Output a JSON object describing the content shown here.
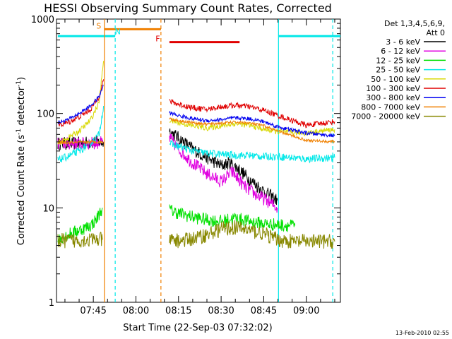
{
  "chart_data": {
    "type": "line",
    "title": "HESSI Observing Summary Count Rates, Corrected",
    "xlabel": "Start Time (22-Sep-03 07:32:02)",
    "ylabel_main": "Corrected Count Rate (s",
    "ylabel_sup1": "-1",
    "ylabel_mid": " detector",
    "ylabel_sup2": "-1",
    "ylabel_end": ")",
    "ylabel": "Corrected Count Rate (s-1 detector-1)",
    "yscale": "log",
    "ylim": [
      1,
      1000
    ],
    "xlim": [
      452.03,
      552
    ],
    "grid": false,
    "x_units": "minutes of day",
    "x_ticks": [
      {
        "value": 465,
        "label": "07:45"
      },
      {
        "value": 480,
        "label": "08:00"
      },
      {
        "value": 495,
        "label": "08:15"
      },
      {
        "value": 510,
        "label": "08:30"
      },
      {
        "value": 525,
        "label": "08:45"
      },
      {
        "value": 540,
        "label": "09:00"
      }
    ],
    "y_ticks": [
      {
        "value": 1,
        "label": "1"
      },
      {
        "value": 10,
        "label": "10"
      },
      {
        "value": 100,
        "label": "100"
      },
      {
        "value": 1000,
        "label": "1000"
      }
    ],
    "legend": {
      "placement": "right",
      "title_line1": "Det 1,3,4,5,6,9,",
      "title_line2": "Att 0"
    },
    "series": [
      {
        "name": "3 - 6 keV",
        "color": "#000000",
        "noise": 0.07,
        "segments": [
          {
            "x": [
              452.5,
              458,
              462,
              466,
              468.6
            ],
            "y": [
              48,
              48,
              49,
              50,
              50
            ]
          },
          {
            "x": [
              491.8,
              495,
              500,
              505,
              510,
              513,
              516,
              520,
              525,
              529.8
            ],
            "y": [
              65,
              55,
              42,
              34,
              28,
              30,
              26,
              20,
              15,
              12
            ]
          }
        ]
      },
      {
        "name": "6 - 12 keV",
        "color": "#e000e0",
        "noise": 0.07,
        "segments": [
          {
            "x": [
              452.5,
              458,
              462,
              466,
              468.6
            ],
            "y": [
              48,
              48,
              48,
              49,
              49
            ]
          },
          {
            "x": [
              491.8,
              495,
              500,
              505,
              510,
              514,
              518,
              522,
              526,
              529.8
            ],
            "y": [
              55,
              42,
              30,
              23,
              19,
              24,
              17,
              14,
              12,
              10
            ]
          }
        ]
      },
      {
        "name": "12 - 25 keV",
        "color": "#00e000",
        "noise": 0.07,
        "segments": [
          {
            "x": [
              452.5,
              456,
              460,
              464,
              466,
              468.2
            ],
            "y": [
              4.5,
              5.2,
              5.8,
              6.5,
              7.5,
              10
            ]
          },
          {
            "x": [
              491.8,
              495,
              500,
              505,
              510,
              515,
              520,
              525,
              530,
              536
            ],
            "y": [
              9.5,
              8.8,
              8.0,
              7.5,
              7.2,
              7.8,
              7.2,
              6.8,
              6.6,
              6.5
            ]
          }
        ]
      },
      {
        "name": "25 - 50 keV",
        "color": "#00e8e8",
        "noise": 0.04,
        "segments": [
          {
            "x": [
              452.5,
              456,
              460,
              464,
              467,
              468.6
            ],
            "y": [
              32,
              35,
              40,
              48,
              60,
              120
            ]
          },
          {
            "x": [
              491.8,
              495,
              500,
              505,
              510,
              515,
              520,
              525,
              530,
              540,
              550
            ],
            "y": [
              48,
              45,
              40,
              38,
              37,
              36,
              36,
              35,
              35,
              33,
              34
            ]
          }
        ]
      },
      {
        "name": "50 - 100 keV",
        "color": "#d8d800",
        "noise": 0.03,
        "segments": [
          {
            "x": [
              452.5,
              456,
              460,
              464,
              467,
              468.6
            ],
            "y": [
              48,
              55,
              65,
              85,
              130,
              360
            ]
          },
          {
            "x": [
              491.8,
              495,
              500,
              505,
              510,
              515,
              520,
              525,
              530,
              540,
              550
            ],
            "y": [
              85,
              80,
              74,
              70,
              74,
              78,
              75,
              68,
              64,
              62,
              68
            ]
          }
        ]
      },
      {
        "name": "100 - 300 keV",
        "color": "#e00000",
        "noise": 0.03,
        "segments": [
          {
            "x": [
              452.5,
              456,
              460,
              464,
              467,
              468.6
            ],
            "y": [
              75,
              80,
              92,
              110,
              150,
              230
            ]
          },
          {
            "x": [
              491.8,
              495,
              500,
              505,
              510,
              515,
              520,
              525,
              530,
              540,
              550
            ],
            "y": [
              135,
              125,
              115,
              110,
              118,
              122,
              118,
              108,
              95,
              75,
              82
            ]
          }
        ]
      },
      {
        "name": "300 - 800 keV",
        "color": "#0000f0",
        "noise": 0.02,
        "segments": [
          {
            "x": [
              452.5,
              456,
              460,
              464,
              467,
              468.6
            ],
            "y": [
              80,
              86,
              100,
              120,
              150,
              200
            ]
          },
          {
            "x": [
              491.8,
              495,
              500,
              505,
              510,
              515,
              520,
              525,
              530,
              540,
              550
            ],
            "y": [
              102,
              95,
              88,
              84,
              86,
              90,
              88,
              82,
              72,
              62,
              58
            ]
          }
        ]
      },
      {
        "name": "800 - 7000 keV",
        "color": "#f08000",
        "noise": 0.015,
        "segments": [
          {
            "x": [
              452.5,
              458,
              464,
              468.6
            ],
            "y": [
              49,
              49,
              50,
              50
            ]
          },
          {
            "x": [
              491.8,
              495,
              500,
              505,
              510,
              515,
              520,
              525,
              530,
              540,
              550
            ],
            "y": [
              88,
              84,
              80,
              77,
              79,
              81,
              79,
              74,
              65,
              52,
              50
            ]
          }
        ]
      },
      {
        "name": "7000 - 20000 keV",
        "color": "#888800",
        "noise": 0.08,
        "segments": [
          {
            "x": [
              452.5,
              458,
              464,
              468.2
            ],
            "y": [
              4.5,
              4.5,
              4.6,
              4.6
            ]
          },
          {
            "x": [
              491.8,
              496,
              500,
              505,
              510,
              515,
              520,
              525,
              530,
              535,
              540,
              550
            ],
            "y": [
              4.5,
              4.5,
              4.7,
              5.2,
              6.0,
              6.2,
              5.8,
              5.3,
              4.6,
              4.4,
              4.4,
              4.4
            ]
          }
        ]
      }
    ],
    "vertical_lines": [
      {
        "x": 468.9,
        "color": "#f08000",
        "style": "solid"
      },
      {
        "x": 472.7,
        "color": "#00e8e8",
        "style": "dashed"
      },
      {
        "x": 488.8,
        "color": "#f08000",
        "style": "dashed"
      },
      {
        "x": 530.2,
        "color": "#00e8e8",
        "style": "solid"
      },
      {
        "x": 549.3,
        "color": "#00e8e8",
        "style": "dashed"
      }
    ],
    "flag_bars": [
      {
        "label": "",
        "color": "#00e8e8",
        "y": 660,
        "x_start": 452.5,
        "x_end": 472.7
      },
      {
        "label": "",
        "color": "#00e8e8",
        "y": 660,
        "x_start": 530.2,
        "x_end": 552
      },
      {
        "label": "",
        "color": "#f08000",
        "y": 780,
        "x_start": 468.9,
        "x_end": 488.8
      },
      {
        "label": "",
        "color": "#e00000",
        "y": 570,
        "x_start": 491.8,
        "x_end": 516.5
      }
    ],
    "markers": [
      {
        "label": "S",
        "color": "#f08000",
        "x": 466.9,
        "y": 790
      },
      {
        "label": "N",
        "color": "#00e8e8",
        "x": 473.6,
        "y": 690
      },
      {
        "label": "F",
        "color": "#e00000",
        "x": 487.7,
        "y": 580
      }
    ],
    "timestamp": "13-Feb-2010 02:55"
  }
}
